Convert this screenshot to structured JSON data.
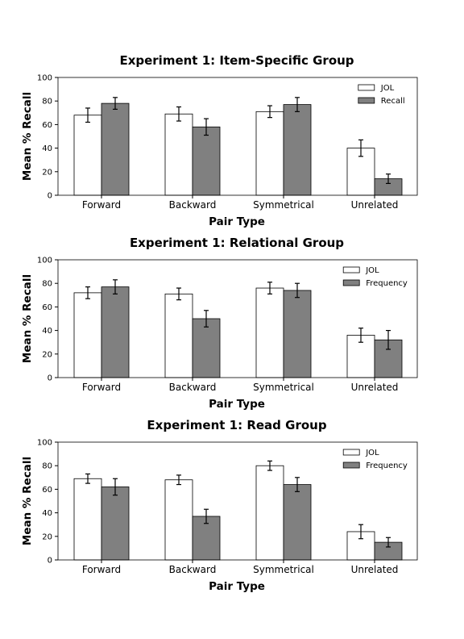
{
  "chart_data": [
    {
      "type": "bar",
      "title": "Experiment 1: Item-Specific Group",
      "xlabel": "Pair Type",
      "ylabel": "Mean % Recall",
      "ylim": [
        0,
        100
      ],
      "yticks": [
        "0",
        "20",
        "40",
        "60",
        "80",
        "100"
      ],
      "categories": [
        "Forward",
        "Backward",
        "Symmetrical",
        "Unrelated"
      ],
      "legend_position": "top-right",
      "series": [
        {
          "name": "JOL",
          "color": "#ffffff",
          "values": [
            68,
            69,
            71,
            40
          ],
          "errors": [
            6,
            6,
            5,
            7
          ]
        },
        {
          "name": "Recall",
          "color": "#808080",
          "values": [
            78,
            58,
            77,
            14
          ],
          "errors": [
            5,
            7,
            6,
            4
          ]
        }
      ]
    },
    {
      "type": "bar",
      "title": "Experiment 1: Relational Group",
      "xlabel": "Pair Type",
      "ylabel": "Mean % Recall",
      "ylim": [
        0,
        100
      ],
      "yticks": [
        "0",
        "20",
        "40",
        "60",
        "80",
        "100"
      ],
      "categories": [
        "Forward",
        "Backward",
        "Symmetrical",
        "Unrelated"
      ],
      "legend_position": "top-right",
      "series": [
        {
          "name": "JOL",
          "color": "#ffffff",
          "values": [
            72,
            71,
            76,
            36
          ],
          "errors": [
            5,
            5,
            5,
            6
          ]
        },
        {
          "name": "Frequency",
          "color": "#808080",
          "values": [
            77,
            50,
            74,
            32
          ],
          "errors": [
            6,
            7,
            6,
            8
          ]
        }
      ]
    },
    {
      "type": "bar",
      "title": "Experiment 1: Read Group",
      "xlabel": "Pair Type",
      "ylabel": "Mean % Recall",
      "ylim": [
        0,
        100
      ],
      "yticks": [
        "0",
        "20",
        "40",
        "60",
        "80",
        "100"
      ],
      "categories": [
        "Forward",
        "Backward",
        "Symmetrical",
        "Unrelated"
      ],
      "legend_position": "top-right",
      "series": [
        {
          "name": "JOL",
          "color": "#ffffff",
          "values": [
            69,
            68,
            80,
            24
          ],
          "errors": [
            4,
            4,
            4,
            6
          ]
        },
        {
          "name": "Frequency",
          "color": "#808080",
          "values": [
            62,
            37,
            64,
            15
          ],
          "errors": [
            7,
            6,
            6,
            4
          ]
        }
      ]
    }
  ]
}
